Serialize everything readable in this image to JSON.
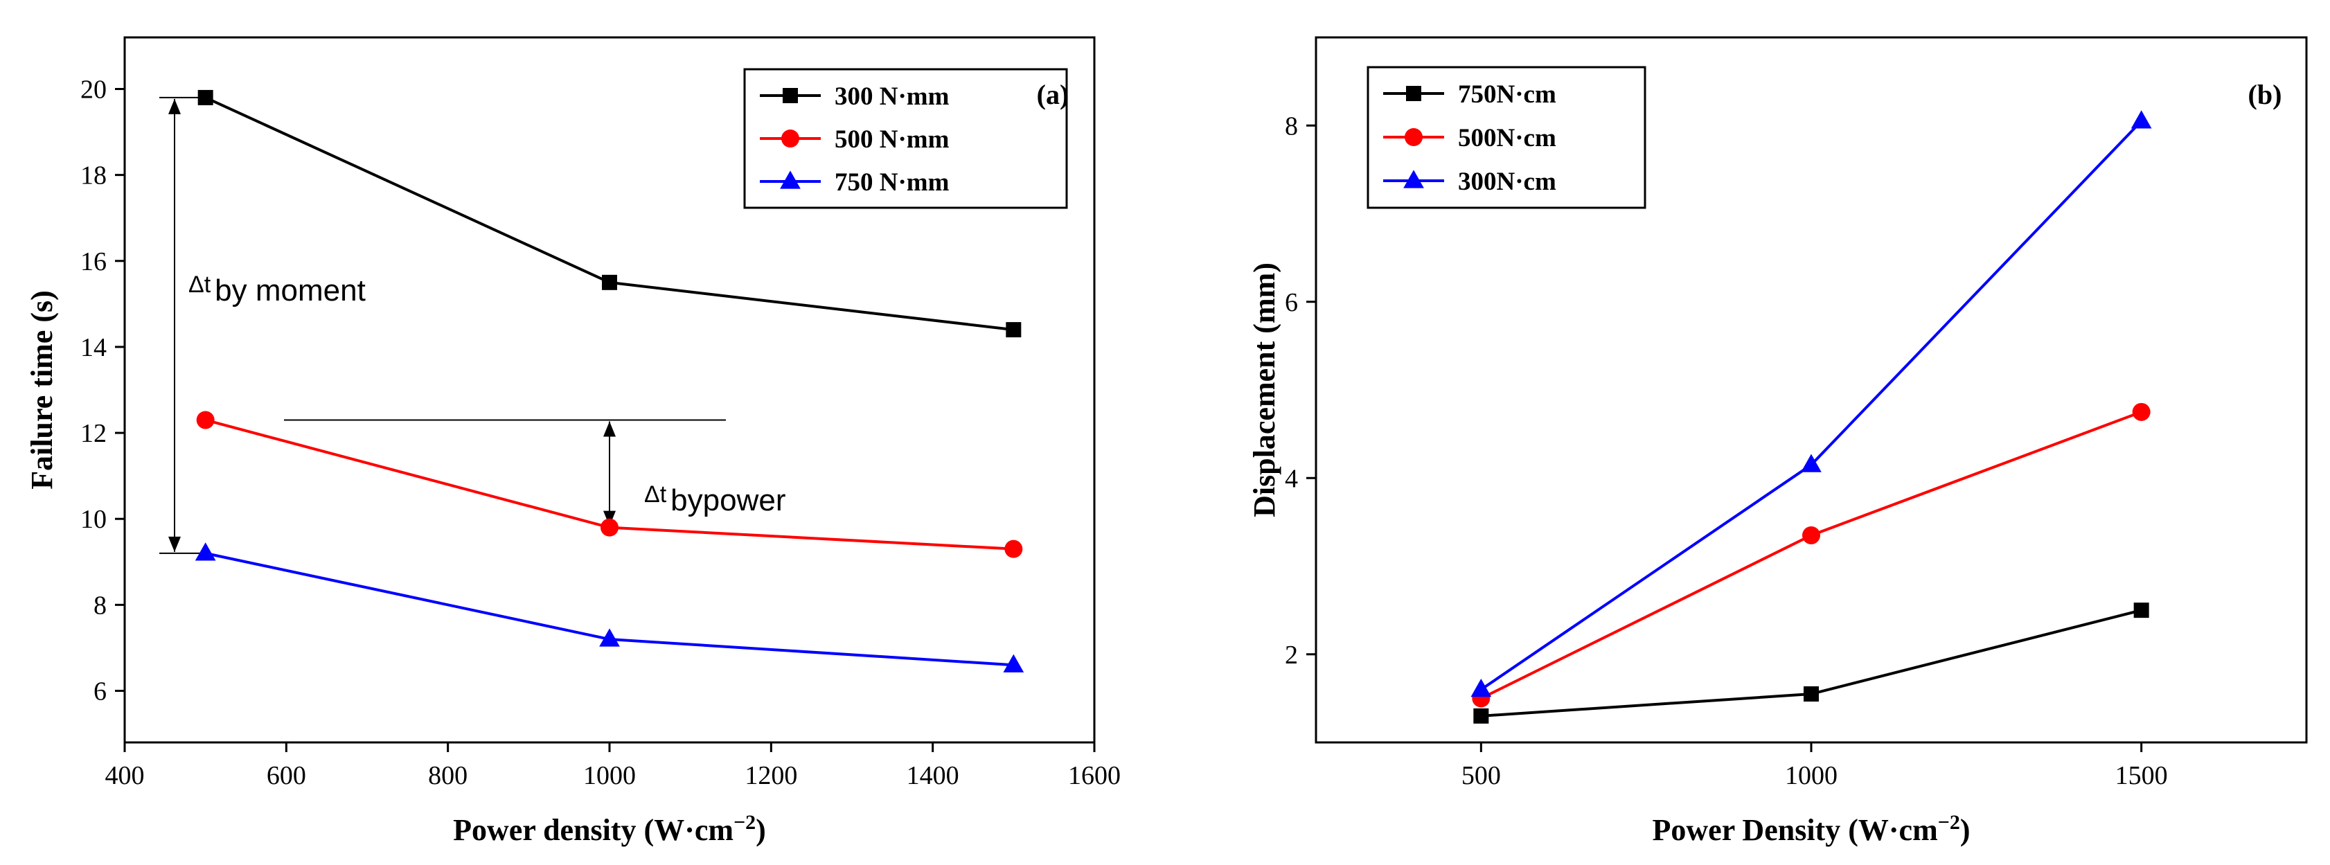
{
  "chart_data": [
    {
      "type": "line",
      "panel_label": "(a)",
      "title": "",
      "xlabel": "Power density (W·cm",
      "xlabel_sup": "−2",
      "xlabel_close": ")",
      "ylabel": "Failure time (s)",
      "xlim": [
        400,
        1600
      ],
      "ylim": [
        4.8,
        21.2
      ],
      "xticks": [
        400,
        600,
        800,
        1000,
        1200,
        1400,
        1600
      ],
      "yticks": [
        6,
        8,
        10,
        12,
        14,
        16,
        18,
        20
      ],
      "legend_position": "top-right",
      "series": [
        {
          "name": "300 N·mm",
          "marker": "square",
          "color": "#000000",
          "x": [
            500,
            1000,
            1500
          ],
          "y": [
            19.8,
            15.5,
            14.4
          ]
        },
        {
          "name": "500 N·mm",
          "marker": "circle",
          "color": "#ff0000",
          "x": [
            500,
            1000,
            1500
          ],
          "y": [
            12.3,
            9.8,
            9.3
          ]
        },
        {
          "name": "750 N·mm",
          "marker": "triangle",
          "color": "#0000ff",
          "x": [
            500,
            1000,
            1500
          ],
          "y": [
            9.2,
            7.2,
            6.6
          ]
        }
      ],
      "annotations": [
        {
          "text": "Δt",
          "sub": "by moment",
          "between_y": [
            9.2,
            19.8
          ]
        },
        {
          "text": "Δt",
          "sub": "bypower",
          "between_y": [
            9.8,
            12.3
          ]
        }
      ]
    },
    {
      "type": "line",
      "panel_label": "(b)",
      "title": "",
      "xlabel": "Power Density (W·cm",
      "xlabel_sup": "−2",
      "xlabel_close": ")",
      "ylabel": "Displacement (mm)",
      "xlim": [
        250,
        1750
      ],
      "ylim": [
        1.0,
        9.0
      ],
      "xticks": [
        500,
        1000,
        1500
      ],
      "yticks": [
        2,
        4,
        6,
        8
      ],
      "legend_position": "top-left",
      "series": [
        {
          "name": "750N·cm",
          "marker": "square",
          "color": "#000000",
          "x": [
            500,
            1000,
            1500
          ],
          "y": [
            1.3,
            1.55,
            2.5
          ]
        },
        {
          "name": "500N·cm",
          "marker": "circle",
          "color": "#ff0000",
          "x": [
            500,
            1000,
            1500
          ],
          "y": [
            1.5,
            3.35,
            4.75
          ]
        },
        {
          "name": "300N·cm",
          "marker": "triangle",
          "color": "#0000ff",
          "x": [
            500,
            1000,
            1500
          ],
          "y": [
            1.6,
            4.15,
            8.05
          ]
        }
      ]
    }
  ]
}
